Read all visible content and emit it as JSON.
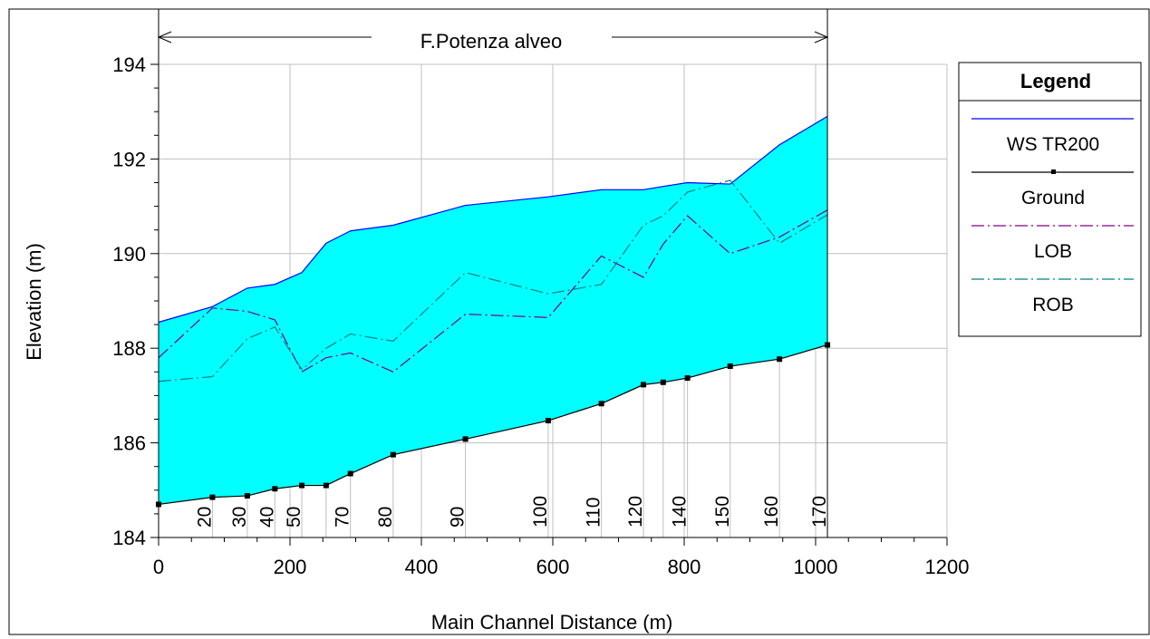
{
  "chart_data": {
    "type": "area",
    "reach_label": "F.Potenza alveo",
    "xlabel": "Main Channel Distance (m)",
    "ylabel": "Elevation (m)",
    "xlim": [
      0,
      1200
    ],
    "ylim": [
      184,
      194
    ],
    "x_ticks": [
      0,
      200,
      400,
      600,
      800,
      1000,
      1200
    ],
    "y_ticks": [
      184,
      186,
      188,
      190,
      192,
      194
    ],
    "x_tick_labels": [
      "0",
      "200",
      "400",
      "600",
      "800",
      "1000",
      "1200"
    ],
    "y_tick_labels": [
      "184",
      "186",
      "188",
      "190",
      "192",
      "194"
    ],
    "grid": true,
    "legend": {
      "title": "Legend",
      "position": "right",
      "entries": [
        {
          "name": "WS  TR200",
          "color": "#0000ff",
          "style": "solid"
        },
        {
          "name": "Ground",
          "color": "#000000",
          "style": "solid-square"
        },
        {
          "name": "LOB",
          "color": "#800080",
          "style": "dash-dot"
        },
        {
          "name": "ROB",
          "color": "#008080",
          "style": "dash-dot"
        }
      ]
    },
    "fill_color": "#00ffff",
    "stations": [
      {
        "label": "",
        "x": 0
      },
      {
        "label": "20",
        "x": 82
      },
      {
        "label": "30",
        "x": 135
      },
      {
        "label": "40",
        "x": 177
      },
      {
        "label": "50",
        "x": 218
      },
      {
        "label": "",
        "x": 255
      },
      {
        "label": "70",
        "x": 292
      },
      {
        "label": "80",
        "x": 357
      },
      {
        "label": "90",
        "x": 467
      },
      {
        "label": "100",
        "x": 593
      },
      {
        "label": "110",
        "x": 674
      },
      {
        "label": "120",
        "x": 738
      },
      {
        "label": "",
        "x": 768
      },
      {
        "label": "140",
        "x": 805
      },
      {
        "label": "150",
        "x": 870
      },
      {
        "label": "160",
        "x": 945
      },
      {
        "label": "170",
        "x": 1018
      }
    ],
    "series": [
      {
        "name": "WS  TR200",
        "x": [
          0,
          82,
          135,
          177,
          218,
          255,
          292,
          357,
          467,
          593,
          674,
          738,
          768,
          805,
          870,
          945,
          1018
        ],
        "values": [
          188.55,
          188.88,
          189.27,
          189.35,
          189.6,
          190.22,
          190.48,
          190.6,
          191.02,
          191.2,
          191.35,
          191.35,
          191.42,
          191.5,
          191.47,
          192.3,
          192.9
        ]
      },
      {
        "name": "Ground",
        "x": [
          0,
          82,
          135,
          177,
          218,
          255,
          292,
          357,
          467,
          593,
          674,
          738,
          768,
          805,
          870,
          945,
          1018
        ],
        "values": [
          184.7,
          184.85,
          184.88,
          185.03,
          185.1,
          185.1,
          185.35,
          185.75,
          186.08,
          186.47,
          186.83,
          187.23,
          187.28,
          187.37,
          187.62,
          187.77,
          188.07
        ]
      },
      {
        "name": "LOB",
        "x": [
          0,
          82,
          135,
          177,
          218,
          255,
          292,
          357,
          467,
          593,
          674,
          738,
          768,
          805,
          870,
          945,
          1018
        ],
        "values": [
          187.8,
          188.85,
          188.78,
          188.6,
          187.5,
          187.8,
          187.9,
          187.5,
          188.72,
          188.65,
          189.95,
          189.5,
          190.2,
          190.8,
          190.0,
          190.35,
          190.92
        ]
      },
      {
        "name": "ROB",
        "x": [
          0,
          82,
          135,
          177,
          218,
          255,
          292,
          357,
          467,
          593,
          674,
          738,
          768,
          805,
          870,
          945,
          1018
        ],
        "values": [
          187.3,
          187.4,
          188.2,
          188.45,
          187.55,
          188.0,
          188.3,
          188.15,
          189.6,
          189.15,
          189.35,
          190.6,
          190.8,
          191.3,
          191.55,
          190.22,
          190.82
        ]
      }
    ]
  }
}
